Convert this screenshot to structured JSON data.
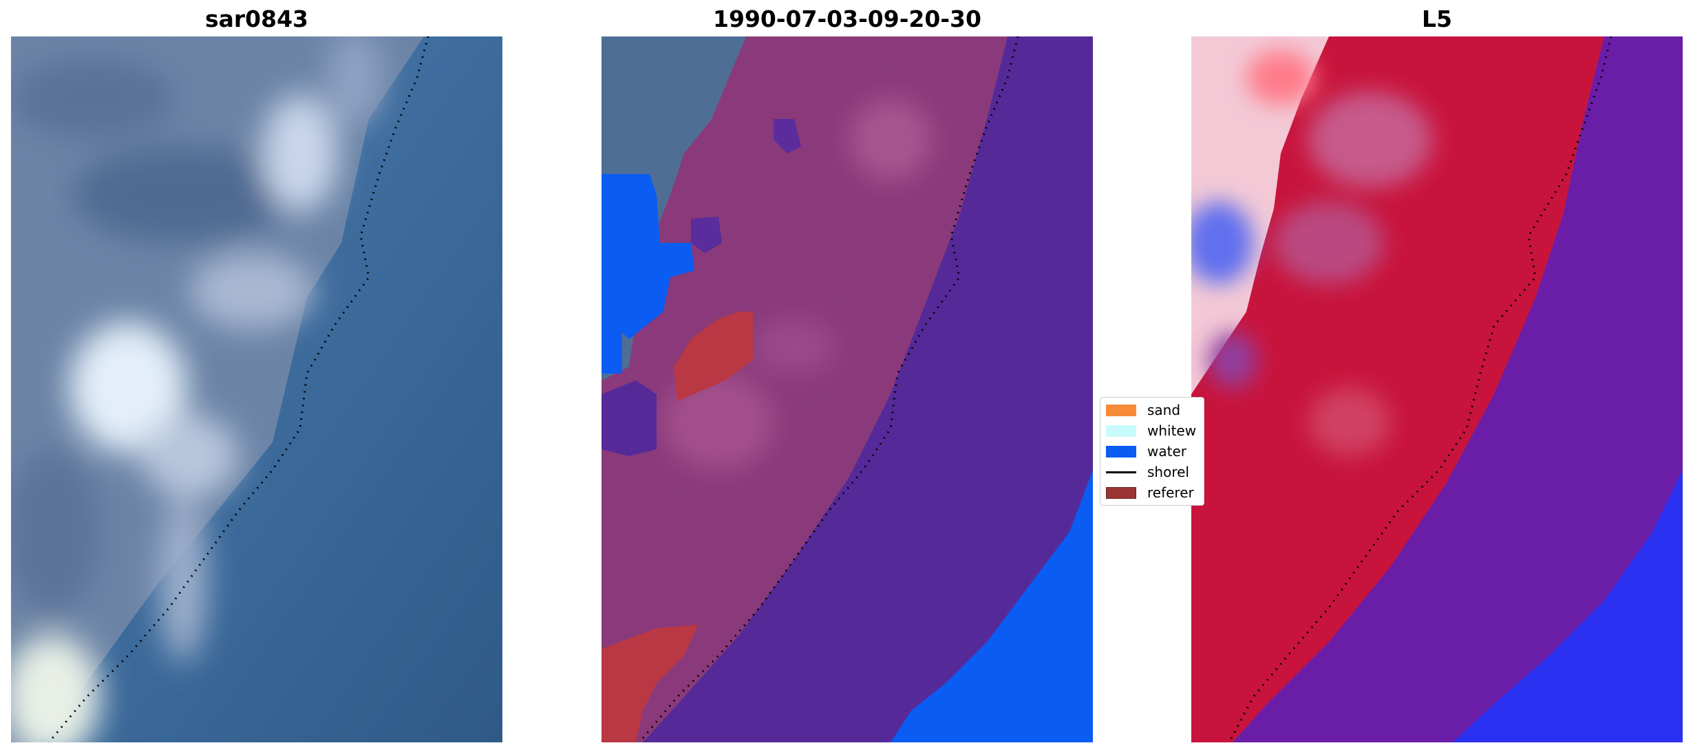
{
  "panels": [
    {
      "title": "sar0843"
    },
    {
      "title": "1990-07-03-09-20-30"
    },
    {
      "title": "L5"
    }
  ],
  "legend": {
    "items": [
      {
        "label": "sand",
        "color": "#f78b3a",
        "kind": "patch"
      },
      {
        "label": "whitew",
        "color": "#c8fbfb",
        "kind": "patch"
      },
      {
        "label": "water",
        "color": "#0a5cf2",
        "kind": "patch"
      },
      {
        "label": "shorel",
        "color": "#000000",
        "kind": "line"
      },
      {
        "label": "referer",
        "color": "#9b3434",
        "kind": "patch"
      }
    ]
  },
  "colors": {
    "rgb_sea": "#3f6e9e",
    "rgb_land": "#6f86a8",
    "class_land": "#8a3a7a",
    "class_sea": "#552a98",
    "class_water": "#0a5cf2",
    "ref_red": "#b93844",
    "index_red": "#c8143c",
    "index_purple": "#6a1ea8",
    "index_blue": "#2a30f0"
  }
}
